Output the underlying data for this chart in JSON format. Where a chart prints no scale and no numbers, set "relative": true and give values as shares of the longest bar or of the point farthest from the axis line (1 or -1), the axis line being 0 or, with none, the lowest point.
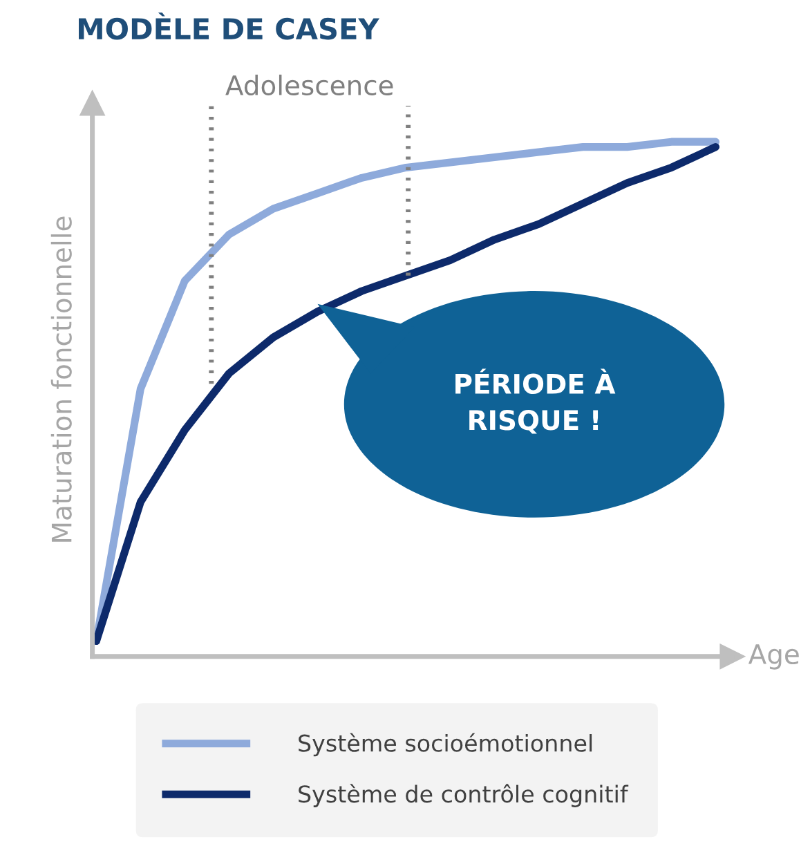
{
  "chart_data": {
    "type": "line",
    "title": "MODÈLE DE CASEY",
    "xlabel": "Age",
    "ylabel": "Maturation fonctionnelle",
    "relative": true,
    "categories": [
      null,
      null,
      null,
      null,
      null,
      null,
      null,
      null,
      null,
      null,
      null,
      null,
      null,
      null,
      null
    ],
    "series": [
      {
        "name": "Système socioémotionnel",
        "color": "#8eaadb",
        "values": [
          0.03,
          0.52,
          0.73,
          0.82,
          0.87,
          0.9,
          0.93,
          0.95,
          0.96,
          0.97,
          0.98,
          0.99,
          0.99,
          1.0,
          1.0
        ]
      },
      {
        "name": "Système de contrôle cognitif",
        "color": "#0d2a6b",
        "values": [
          0.03,
          0.3,
          0.44,
          0.55,
          0.62,
          0.67,
          0.71,
          0.74,
          0.77,
          0.81,
          0.84,
          0.88,
          0.92,
          0.95,
          0.99
        ]
      }
    ],
    "annotations": [
      "Adolescence",
      "PÉRIODE À\nRISQUE !"
    ],
    "legend": "bottom",
    "grid": false,
    "marker": "none",
    "line_style": "solid"
  }
}
